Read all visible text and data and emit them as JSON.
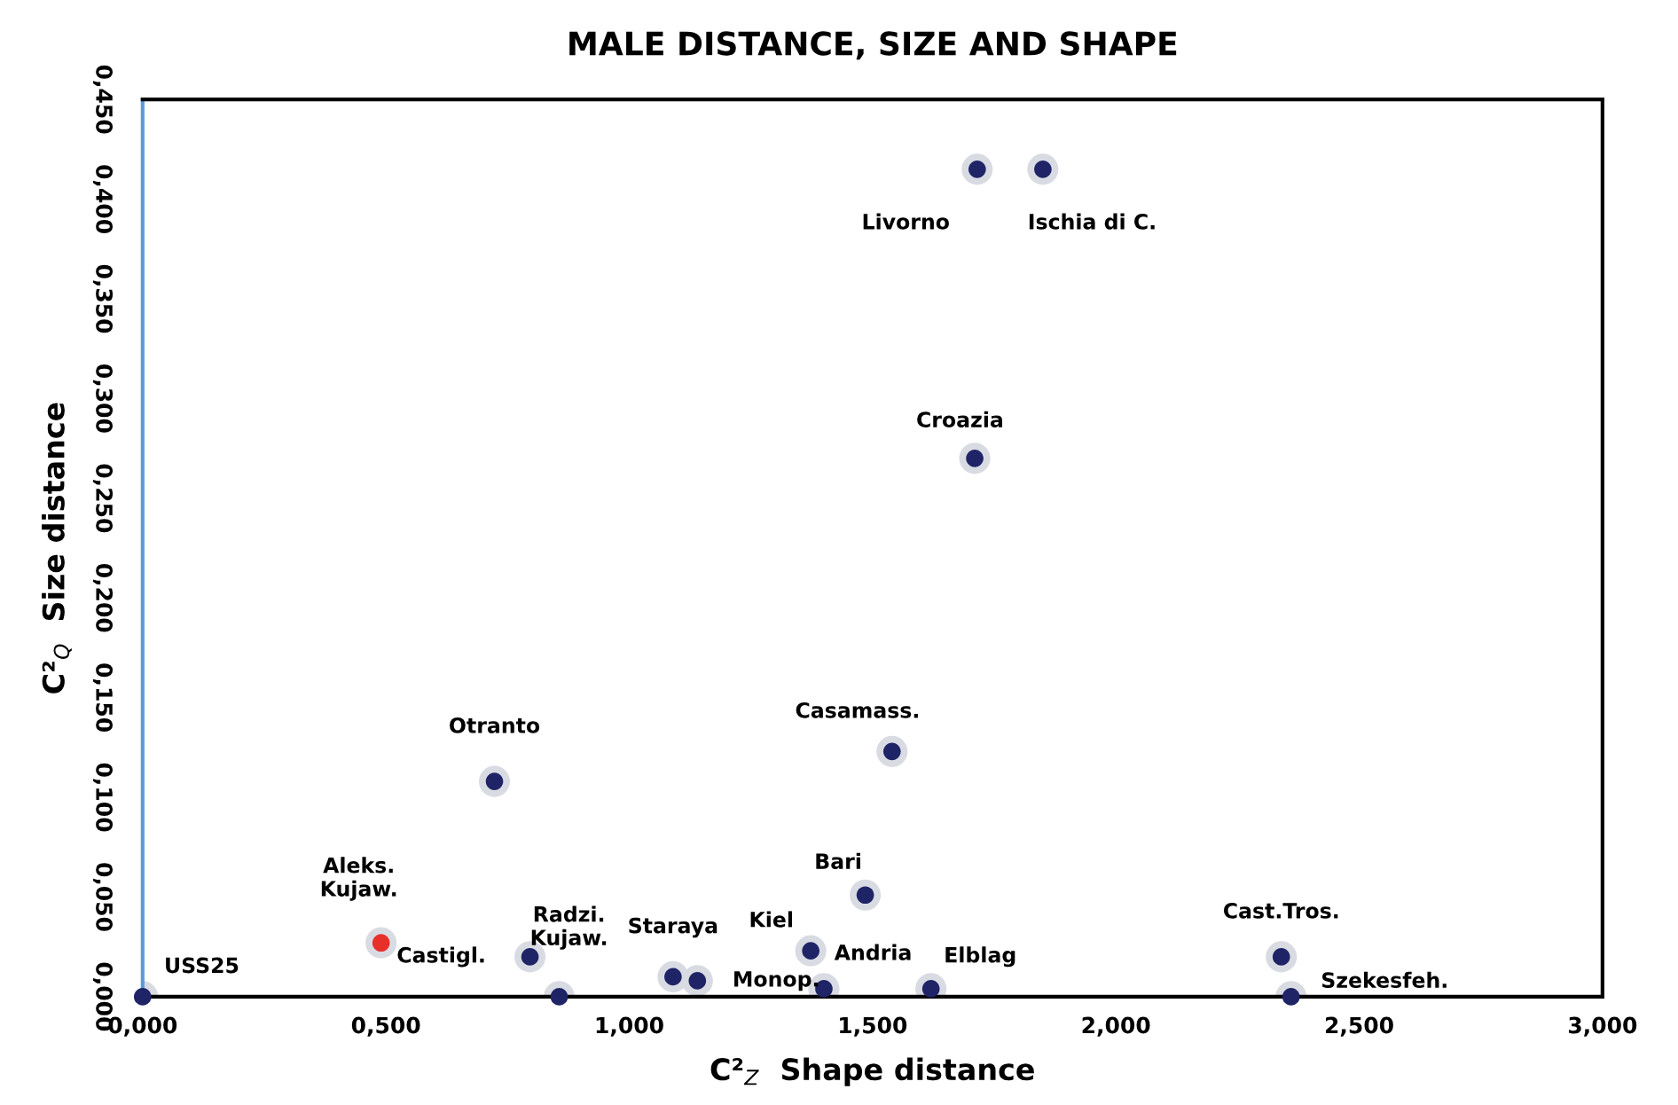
{
  "chart_data": {
    "type": "scatter",
    "title": "MALE DISTANCE, SIZE AND SHAPE",
    "xlabel": "C²$_{Z}$  Shape distance",
    "ylabel": "C²$_{Q}$  Size distance",
    "series": [
      {
        "color": "#1f2466",
        "x": [
          0,
          0.723,
          0.856,
          1.09,
          1.14,
          1.373,
          1.4,
          1.485,
          1.54,
          1.62,
          1.71,
          1.715,
          1.85,
          2.34,
          2.36,
          0.796
        ],
        "values": [
          0,
          0.108,
          0,
          0.01,
          0.008,
          0.023,
          0.004,
          0.051,
          0.123,
          0.004,
          0.27,
          0.415,
          0.415,
          0.02,
          0,
          0.02
        ]
      },
      {
        "color": "#e8302a",
        "x": [
          0.49
        ],
        "values": [
          0.027
        ]
      }
    ],
    "annotations": [
      {
        "text": "USS25",
        "x": 0,
        "y": 0
      },
      {
        "text": "Otranto",
        "x": 0.723,
        "y": 0.108
      },
      {
        "text": "Radzi.\nKujaw.",
        "x": 0.856,
        "y": 0
      },
      {
        "text": "Staraya",
        "x": 1.09,
        "y": 0.01
      },
      {
        "text": "Monop.",
        "x": 1.14,
        "y": 0.008
      },
      {
        "text": "Kiel",
        "x": 1.373,
        "y": 0.023
      },
      {
        "text": "Andria",
        "x": 1.4,
        "y": 0.004
      },
      {
        "text": "Bari",
        "x": 1.485,
        "y": 0.051
      },
      {
        "text": "Casamass.",
        "x": 1.54,
        "y": 0.123
      },
      {
        "text": "Elblag",
        "x": 1.62,
        "y": 0.004
      },
      {
        "text": "Croazia",
        "x": 1.71,
        "y": 0.27
      },
      {
        "text": "Livorno",
        "x": 1.715,
        "y": 0.415
      },
      {
        "text": "Ischia di C.",
        "x": 1.85,
        "y": 0.415
      },
      {
        "text": "Cast.Tros.",
        "x": 2.34,
        "y": 0.02
      },
      {
        "text": "Szekesfeh.",
        "x": 2.36,
        "y": 0
      },
      {
        "text": "Castigl.",
        "x": 0.796,
        "y": 0.02
      },
      {
        "text": "Aleks.\nKujaw.",
        "x": 0.49,
        "y": 0.027
      }
    ],
    "xlim": [
      0,
      3
    ],
    "xticks": [
      {
        "value": 0,
        "label": "0,000"
      },
      {
        "value": 0.5,
        "label": "0,500"
      },
      {
        "value": 1,
        "label": "1,000"
      },
      {
        "value": 1.5,
        "label": "1,500"
      },
      {
        "value": 2,
        "label": "2,000"
      },
      {
        "value": 2.5,
        "label": "2,500"
      },
      {
        "value": 3,
        "label": "3,000"
      }
    ],
    "ylim": [
      0,
      0.45
    ],
    "yticks": [
      {
        "value": 0,
        "label": "0,000"
      },
      {
        "value": 0.05,
        "label": "0,050"
      },
      {
        "value": 0.1,
        "label": "0,100"
      },
      {
        "value": 0.15,
        "label": "0,150"
      },
      {
        "value": 0.2,
        "label": "0,200"
      },
      {
        "value": 0.25,
        "label": "0,250"
      },
      {
        "value": 0.3,
        "label": "0,300"
      },
      {
        "value": 0.35,
        "label": "0,350"
      },
      {
        "value": 0.4,
        "label": "0,400"
      },
      {
        "value": 0.45,
        "label": "0,450"
      }
    ],
    "marker": "circle"
  }
}
